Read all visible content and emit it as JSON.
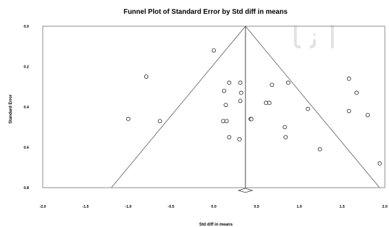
{
  "chart_data": {
    "type": "scatter",
    "title": "Funnel Plot of Standard Error by Std diff in means",
    "xlabel": "Std diff in means",
    "ylabel": "Standard Error",
    "xlim": [
      -2.0,
      2.0
    ],
    "ylim": [
      0.0,
      0.8
    ],
    "y_inverted": true,
    "x_ticks": [
      "-2.0",
      "-1.5",
      "-1.0",
      "-0.5",
      "0.0",
      "0.5",
      "1.0",
      "1.5",
      "2.0"
    ],
    "y_ticks": [
      "0.0",
      "0.2",
      "0.4",
      "0.6",
      "0.8"
    ],
    "grid": false,
    "summary_effect": 0.37,
    "points": [
      {
        "x": 0.0,
        "y": 0.12
      },
      {
        "x": -0.79,
        "y": 0.25
      },
      {
        "x": 0.18,
        "y": 0.28
      },
      {
        "x": 0.31,
        "y": 0.28
      },
      {
        "x": 0.12,
        "y": 0.32
      },
      {
        "x": 0.32,
        "y": 0.33
      },
      {
        "x": 0.31,
        "y": 0.37
      },
      {
        "x": 0.14,
        "y": 0.39
      },
      {
        "x": 0.61,
        "y": 0.38
      },
      {
        "x": 0.65,
        "y": 0.38
      },
      {
        "x": 0.68,
        "y": 0.29
      },
      {
        "x": 0.87,
        "y": 0.28
      },
      {
        "x": 1.1,
        "y": 0.41
      },
      {
        "x": 1.58,
        "y": 0.26
      },
      {
        "x": 1.67,
        "y": 0.33
      },
      {
        "x": 1.58,
        "y": 0.42
      },
      {
        "x": 1.8,
        "y": 0.44
      },
      {
        "x": -1.0,
        "y": 0.46
      },
      {
        "x": -0.63,
        "y": 0.47
      },
      {
        "x": 0.11,
        "y": 0.47
      },
      {
        "x": 0.15,
        "y": 0.47
      },
      {
        "x": 0.43,
        "y": 0.46
      },
      {
        "x": 0.44,
        "y": 0.46
      },
      {
        "x": 0.83,
        "y": 0.5
      },
      {
        "x": 0.18,
        "y": 0.55
      },
      {
        "x": 0.3,
        "y": 0.56
      },
      {
        "x": 0.84,
        "y": 0.55
      },
      {
        "x": 1.24,
        "y": 0.61
      },
      {
        "x": 1.94,
        "y": 0.68
      }
    ]
  }
}
